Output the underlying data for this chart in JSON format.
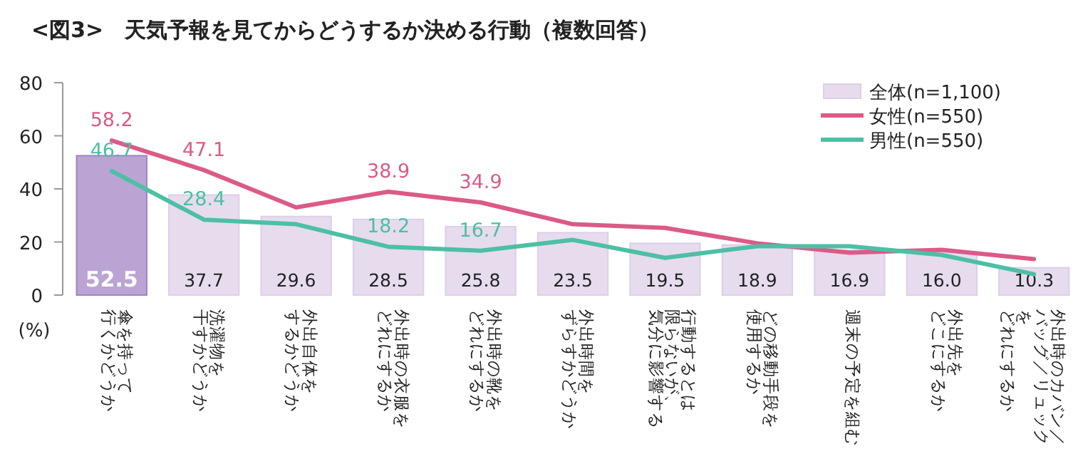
{
  "chart_data": {
    "type": "bar",
    "title": "<図3>　天気予報を見てからどうするか決める行動（複数回答）",
    "ylabel": "(%)",
    "categories": [
      "傘を持って行くかどうか",
      "洗濯物を干すかどうか",
      "外出自体をするかどうか",
      "外出時の衣服をどれにするか",
      "外出時の靴をどれにするか",
      "外出時間をずらすかどうか",
      "行動するとは限らないが、気分に影響する",
      "どの移動手段を使用するか",
      "週末の予定を組む",
      "外出先をどこにするか",
      "外出時のカバン／バッグ／リュックをどれにするか"
    ],
    "ylim": [
      0,
      80
    ],
    "yticks": [
      0,
      20,
      40,
      60,
      80
    ],
    "legend": "top right",
    "grid": false,
    "series": [
      {
        "name": "全体(n=1,100)",
        "color": "#e6dcee",
        "colors": [
          "#bba4d4",
          "#e6dcee",
          "#e6dcee",
          "#e6dcee",
          "#e6dcee",
          "#e6dcee",
          "#e6dcee",
          "#e6dcee",
          "#e6dcee",
          "#e6dcee",
          "#e6dcee"
        ],
        "values": [
          52.5,
          37.7,
          29.6,
          28.5,
          25.8,
          23.5,
          19.5,
          18.9,
          16.9,
          16.0,
          10.3
        ],
        "value_labels": [
          "52.5",
          "37.7",
          "29.6",
          "28.5",
          "25.8",
          "23.5",
          "19.5",
          "18.9",
          "16.9",
          "16.0",
          "10.3"
        ]
      },
      {
        "name": "女性(n=550)",
        "type": "line",
        "color": "#dc5a87",
        "values": [
          58.2,
          47.1,
          33.0,
          38.9,
          34.9,
          26.7,
          25.3,
          19.5,
          16.0,
          17.0,
          13.6
        ],
        "value_labels": [
          "58.2",
          "47.1",
          null,
          "38.9",
          "34.9",
          null,
          null,
          null,
          null,
          null,
          null
        ]
      },
      {
        "name": "男性(n=550)",
        "type": "line",
        "color": "#4dbfa5",
        "values": [
          46.7,
          28.4,
          26.7,
          18.2,
          16.7,
          20.8,
          14.0,
          18.4,
          18.4,
          15.1,
          7.9
        ],
        "value_labels": [
          "46.7",
          "28.4",
          null,
          "18.2",
          "16.7",
          null,
          null,
          null,
          null,
          null,
          null
        ]
      }
    ]
  }
}
